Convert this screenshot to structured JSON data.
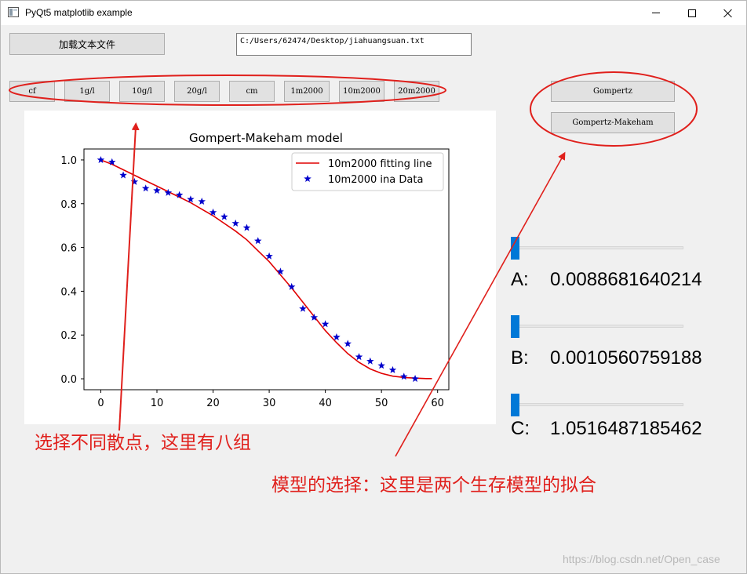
{
  "window": {
    "title": "PyQt5 matplotlib example",
    "icon": "app-window-icon"
  },
  "toolbar": {
    "load_button": "加载文本文件",
    "file_path": "C:/Users/62474/Desktop/jiahuangsuan.txt"
  },
  "datasets": [
    "cf",
    "1g/l",
    "10g/l",
    "20g/l",
    "cm",
    "1m2000",
    "10m2000",
    "20m2000"
  ],
  "models": [
    "Gompertz",
    "Gompertz-Makeham"
  ],
  "params": [
    {
      "label": "A:",
      "value": "0.0088681640214",
      "slider_fraction": 0.0
    },
    {
      "label": "B:",
      "value": "0.0010560759188",
      "slider_fraction": 0.0
    },
    {
      "label": "C:",
      "value": "1.0516487185462",
      "slider_fraction": 0.0
    }
  ],
  "annotations": {
    "scatter_note": "选择不同散点，这里有八组",
    "model_note": "模型的选择：这里是两个生存模型的拟合",
    "color": "#e0201c"
  },
  "watermark": "https://blog.csdn.net/Open_case",
  "chart_data": {
    "type": "line",
    "title": "Gompert-Makeham model",
    "xlabel": "",
    "ylabel": "",
    "xlim": [
      -3.0,
      62.0
    ],
    "ylim": [
      -0.05,
      1.05
    ],
    "xticks": [
      0,
      10,
      20,
      30,
      40,
      50,
      60
    ],
    "yticks": [
      "0.0",
      "0.2",
      "0.4",
      "0.6",
      "0.8",
      "1.0"
    ],
    "grid": false,
    "legend_position": "top-right",
    "series": [
      {
        "name": "10m2000 fitting line",
        "kind": "line",
        "color": "#e00000",
        "x": [
          0,
          2,
          4,
          6,
          8,
          10,
          12,
          14,
          16,
          18,
          20,
          22,
          24,
          26,
          28,
          30,
          32,
          34,
          36,
          38,
          40,
          42,
          44,
          46,
          48,
          50,
          52,
          54,
          56,
          58,
          59
        ],
        "y": [
          1.0,
          0.98,
          0.955,
          0.93,
          0.905,
          0.88,
          0.855,
          0.83,
          0.805,
          0.775,
          0.745,
          0.71,
          0.675,
          0.635,
          0.585,
          0.535,
          0.475,
          0.415,
          0.35,
          0.285,
          0.22,
          0.165,
          0.115,
          0.075,
          0.045,
          0.025,
          0.012,
          0.006,
          0.003,
          0.001,
          0.001
        ]
      },
      {
        "name": "10m2000 ina Data",
        "kind": "scatter",
        "marker": "star",
        "color": "#0000cc",
        "x": [
          0,
          2,
          4,
          6,
          8,
          10,
          12,
          14,
          16,
          18,
          20,
          22,
          24,
          26,
          28,
          30,
          32,
          34,
          36,
          38,
          40,
          42,
          44,
          46,
          48,
          50,
          52,
          54,
          56
        ],
        "y": [
          1.0,
          0.99,
          0.93,
          0.9,
          0.87,
          0.86,
          0.85,
          0.84,
          0.82,
          0.81,
          0.76,
          0.74,
          0.71,
          0.69,
          0.63,
          0.56,
          0.49,
          0.42,
          0.32,
          0.28,
          0.25,
          0.19,
          0.16,
          0.1,
          0.08,
          0.06,
          0.04,
          0.01,
          0.0
        ]
      }
    ]
  }
}
